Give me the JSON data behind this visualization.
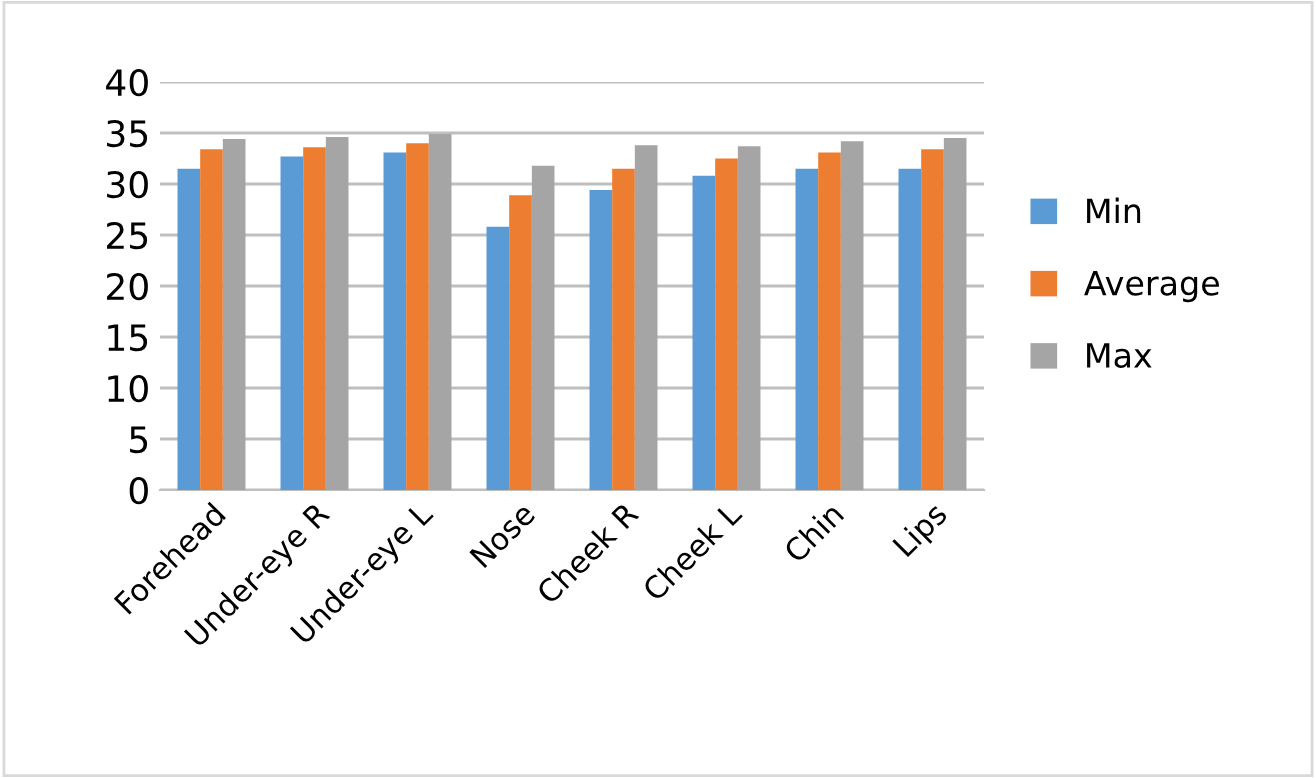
{
  "chart_data": {
    "type": "bar",
    "categories": [
      "Forehead",
      "Under-eye R",
      "Under-eye L",
      "Nose",
      "Cheek R",
      "Cheek L",
      "Chin",
      "Lips"
    ],
    "series": [
      {
        "name": "Min",
        "color": "#5b9bd5",
        "values": [
          31.5,
          32.7,
          33.1,
          25.8,
          29.4,
          30.8,
          31.5,
          31.5
        ]
      },
      {
        "name": "Average",
        "color": "#ed7d31",
        "values": [
          33.4,
          33.6,
          34.0,
          28.9,
          31.5,
          32.5,
          33.1,
          33.4
        ]
      },
      {
        "name": "Max",
        "color": "#a5a5a5",
        "values": [
          34.4,
          34.6,
          34.9,
          31.8,
          33.8,
          33.7,
          34.2,
          34.5
        ]
      }
    ],
    "ylim": [
      0,
      40
    ],
    "yticks": [
      0,
      5,
      10,
      15,
      20,
      25,
      30,
      35,
      40
    ],
    "grid": "y",
    "legend": "right"
  }
}
